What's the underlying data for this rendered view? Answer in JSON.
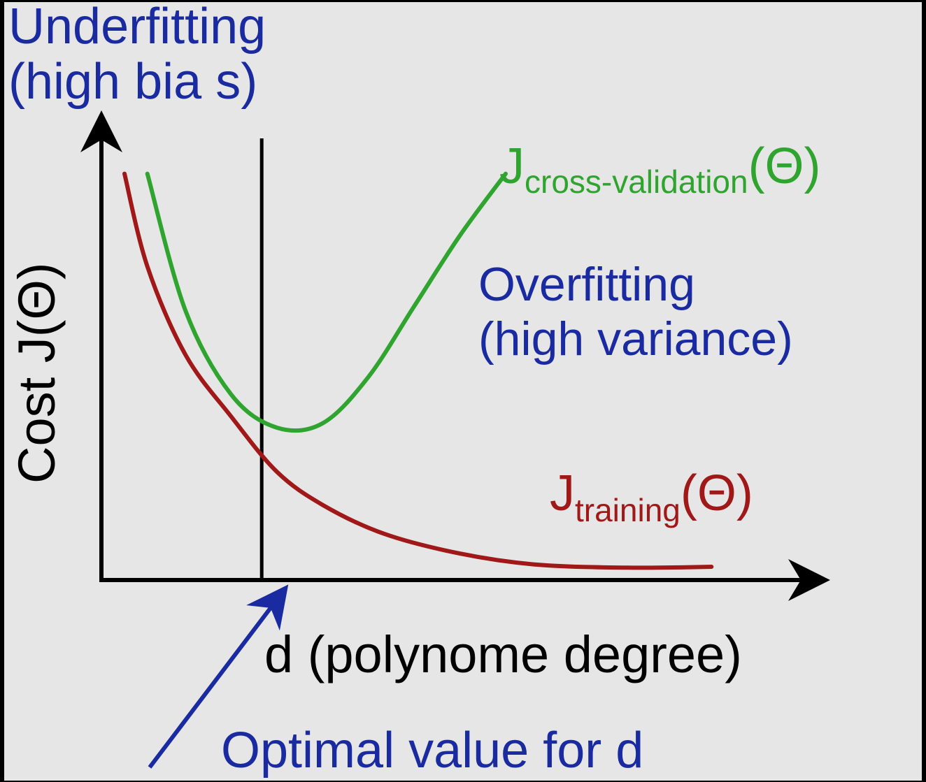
{
  "colors": {
    "background": "#e6e6e6",
    "frame": "#000000",
    "axis": "#000000",
    "annotation": "#1a2aa0",
    "cross_validation_curve": "#2fa52f",
    "training_curve": "#a01818"
  },
  "labels": {
    "underfitting_line1": "Underfitting",
    "underfitting_line2": "(high bia s)",
    "overfitting_line1": "Overfitting",
    "overfitting_line2": "(high variance)",
    "y_axis": "Cost J(Θ)",
    "x_axis": "d (polynome degree)",
    "optimal": "Optimal value for d",
    "cv_J": "J",
    "cv_subscript": "cross-validation",
    "cv_theta": "(Θ)",
    "train_J": "J",
    "train_subscript": "training",
    "train_theta": "(Θ)"
  },
  "chart_data": {
    "type": "line",
    "title": "",
    "xlabel": "d (polynome degree)",
    "ylabel": "Cost J(Θ)",
    "series": [
      {
        "name": "J cross-validation (Θ)",
        "color": "#2fa52f",
        "x": [
          0.3,
          0.8,
          1.4,
          2.0,
          2.6,
          3.2,
          3.8,
          4.4,
          5.0
        ],
        "y": [
          9.2,
          6.1,
          4.2,
          3.45,
          3.55,
          4.6,
          6.2,
          7.8,
          9.2
        ]
      },
      {
        "name": "J training (Θ)",
        "color": "#a01818",
        "x": [
          0.0,
          0.3,
          0.8,
          1.4,
          2.0,
          2.6,
          3.4,
          4.4,
          5.4,
          6.6,
          7.7
        ],
        "y": [
          9.2,
          7.1,
          5.1,
          3.7,
          2.45,
          1.7,
          1.05,
          0.6,
          0.35,
          0.28,
          0.3
        ]
      }
    ],
    "optimal_x": 1.8,
    "xlim": [
      0,
      8
    ],
    "ylim": [
      0,
      10
    ],
    "grid": false,
    "legend": "none"
  }
}
